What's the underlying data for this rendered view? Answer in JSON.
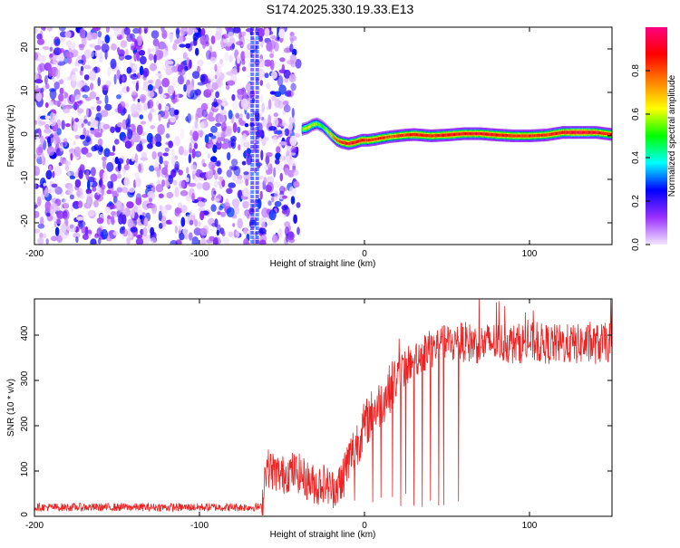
{
  "title": "S174.2025.330.19.33.E13",
  "chart_data": [
    {
      "type": "heatmap",
      "title": "S174.2025.330.19.33.E13",
      "xlabel": "Height of straight line (km)",
      "ylabel": "Frequency (Hz)",
      "xlim": [
        -200,
        150
      ],
      "ylim": [
        -25,
        25
      ],
      "x_ticks": [
        -200,
        -100,
        0,
        100
      ],
      "y_ticks": [
        -20,
        -10,
        0,
        10,
        20
      ],
      "colorbar": {
        "label": "Normalized spectral amplitude",
        "range": [
          0,
          1
        ],
        "ticks": [
          0.0,
          0.2,
          0.4,
          0.6,
          0.8
        ],
        "colors": [
          "#f2e6ff",
          "#9b30ff",
          "#0000ff",
          "#00ffff",
          "#00ff00",
          "#ffff00",
          "#ff8000",
          "#ff0000",
          "#ff0080"
        ]
      },
      "noise_region_x": [
        -200,
        -40
      ],
      "ridge": {
        "x": [
          -38,
          -35,
          -32,
          -29,
          -26,
          -23,
          -20,
          -17,
          -14,
          -10,
          -6,
          -2,
          2,
          6,
          10,
          15,
          20,
          25,
          30,
          40,
          50,
          60,
          70,
          80,
          90,
          100,
          110,
          120,
          130,
          140,
          150
        ],
        "y": [
          1.5,
          1.8,
          2.5,
          2.8,
          2.2,
          1.2,
          0.0,
          -1.0,
          -1.5,
          -1.8,
          -1.5,
          -1.0,
          -1.0,
          -0.8,
          -0.5,
          -0.2,
          0.0,
          0.2,
          0.3,
          0.0,
          0.2,
          0.5,
          0.5,
          0.2,
          0.0,
          0.0,
          0.2,
          0.8,
          0.8,
          0.8,
          0.3
        ],
        "amplitude": [
          0.55,
          0.65,
          0.6,
          0.55,
          0.5,
          0.6,
          0.7,
          0.8,
          0.85,
          0.9,
          0.9,
          0.9,
          0.85,
          0.85,
          0.85,
          0.8,
          0.85,
          0.85,
          0.9,
          0.85,
          0.9,
          0.9,
          0.9,
          0.9,
          0.85,
          0.85,
          0.85,
          0.9,
          0.95,
          0.9,
          0.85
        ]
      }
    },
    {
      "type": "line",
      "xlabel": "Height of straight line (km)",
      "ylabel": "SNR (10 * v/v)",
      "xlim": [
        -200,
        150
      ],
      "ylim": [
        0,
        480
      ],
      "x_ticks": [
        -200,
        -100,
        0,
        100
      ],
      "y_ticks": [
        0,
        100,
        200,
        300,
        400
      ],
      "color": "#ee2222",
      "series": [
        {
          "x": [
            -200,
            -160,
            -120,
            -80,
            -62,
            -60,
            -55,
            -50,
            -45,
            -40,
            -35,
            -30,
            -25,
            -20,
            -15,
            -10,
            -5,
            0,
            5,
            10,
            15,
            20,
            25,
            30,
            35,
            40,
            50,
            60,
            70,
            80,
            90,
            100,
            110,
            120,
            130,
            140,
            150
          ],
          "values": [
            20,
            20,
            20,
            20,
            20,
            110,
            100,
            90,
            100,
            95,
            80,
            70,
            75,
            60,
            70,
            120,
            160,
            200,
            230,
            250,
            280,
            310,
            330,
            350,
            360,
            370,
            380,
            385,
            380,
            385,
            380,
            385,
            380,
            380,
            380,
            380,
            385
          ]
        }
      ],
      "dips_x": [
        -28,
        -22,
        -14,
        -6,
        5,
        10,
        17,
        22,
        25,
        30,
        35,
        40,
        45,
        48,
        57
      ]
    }
  ]
}
